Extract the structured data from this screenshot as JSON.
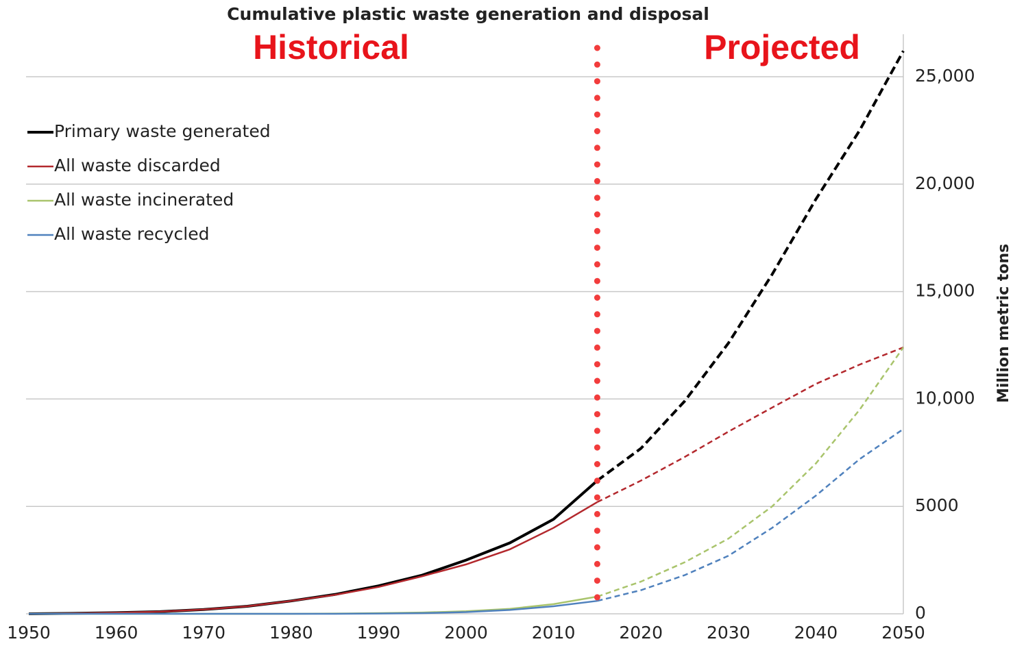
{
  "chart_data": {
    "type": "line",
    "title": "Cumulative plastic waste generation and disposal",
    "annotations": [
      "Historical",
      "Projected"
    ],
    "y_label": "Million metric tons",
    "x": [
      1950,
      1955,
      1960,
      1965,
      1970,
      1975,
      1980,
      1985,
      1990,
      1995,
      2000,
      2005,
      2010,
      2015,
      2020,
      2025,
      2030,
      2035,
      2040,
      2045,
      2050
    ],
    "projection_start": 2015,
    "divider_color": "#f23c3c",
    "series": [
      {
        "name": "Primary waste generated",
        "color": "#000000",
        "values": [
          0,
          20,
          50,
          100,
          200,
          350,
          600,
          900,
          1300,
          1800,
          2500,
          3300,
          4400,
          6200,
          7700,
          9900,
          12600,
          15800,
          19300,
          22500,
          26200
        ]
      },
      {
        "name": "All waste discarded",
        "color": "#b3282d",
        "values": [
          0,
          20,
          50,
          100,
          200,
          350,
          600,
          880,
          1250,
          1750,
          2300,
          3000,
          4000,
          5200,
          6200,
          7300,
          8480,
          9600,
          10700,
          11600,
          12400
        ]
      },
      {
        "name": "All waste incinerated",
        "color": "#a9c46c",
        "values": [
          0,
          0,
          0,
          0,
          0,
          0,
          0,
          10,
          30,
          60,
          120,
          230,
          450,
          800,
          1500,
          2400,
          3500,
          5000,
          7000,
          9500,
          12400
        ]
      },
      {
        "name": "All waste recycled",
        "color": "#4f81bd",
        "values": [
          0,
          0,
          0,
          0,
          0,
          0,
          0,
          0,
          10,
          30,
          80,
          180,
          350,
          600,
          1100,
          1800,
          2700,
          4000,
          5500,
          7200,
          8600
        ]
      }
    ],
    "xlim": [
      1950,
      2050
    ],
    "xticks": [
      1950,
      1960,
      1970,
      1980,
      1990,
      2000,
      2010,
      2020,
      2030,
      2040,
      2050
    ],
    "ylim": [
      0,
      25000
    ],
    "yticks": [
      0,
      5000,
      {
        "value": 10000,
        "label": "10,000"
      },
      {
        "value": 15000,
        "label": "15,000"
      },
      {
        "value": 20000,
        "label": "20,000"
      },
      {
        "value": 25000,
        "label": "25,000"
      }
    ],
    "grid": true,
    "legend": "upper left"
  }
}
